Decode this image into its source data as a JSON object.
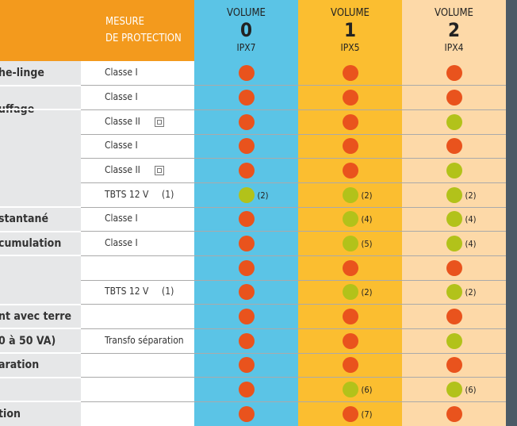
{
  "header": {
    "protection_label_1": "MESURE",
    "protection_label_2": "DE PROTECTION",
    "volumes": [
      {
        "label": "VOLUME",
        "number": "0",
        "rating": "IPX7",
        "color": "#5bc4e6"
      },
      {
        "label": "VOLUME",
        "number": "1",
        "rating": "IPX5",
        "color": "#fbbe30"
      },
      {
        "label": "VOLUME",
        "number": "2",
        "rating": "IPX4",
        "color": "#fdd9a8"
      }
    ]
  },
  "dot_colors": {
    "orange": "#e9531d",
    "green": "#b2c21a"
  },
  "rows": [
    {
      "category": "he-linge",
      "protection": "Classe I",
      "volumes": [
        {
          "dot": "orange"
        },
        {
          "dot": "orange"
        },
        {
          "dot": "orange"
        }
      ]
    },
    {
      "category": "uffage",
      "protection": "Classe I",
      "volumes": [
        {
          "dot": "orange"
        },
        {
          "dot": "orange"
        },
        {
          "dot": "orange"
        }
      ]
    },
    {
      "protection": "Classe II",
      "icon": true,
      "volumes": [
        {
          "dot": "orange"
        },
        {
          "dot": "orange"
        },
        {
          "dot": "green"
        }
      ]
    },
    {
      "protection": "Classe I",
      "volumes": [
        {
          "dot": "orange"
        },
        {
          "dot": "orange"
        },
        {
          "dot": "orange"
        }
      ]
    },
    {
      "protection": "Classe II",
      "icon": true,
      "volumes": [
        {
          "dot": "orange"
        },
        {
          "dot": "orange"
        },
        {
          "dot": "green"
        }
      ]
    },
    {
      "protection": "TBTS 12 V",
      "note": "(1)",
      "volumes": [
        {
          "dot": "green",
          "note": "(2)"
        },
        {
          "dot": "green",
          "note": "(2)"
        },
        {
          "dot": "green",
          "note": "(2)"
        }
      ]
    },
    {
      "category": "stantané",
      "protection": "Classe I",
      "volumes": [
        {
          "dot": "orange"
        },
        {
          "dot": "green",
          "note": "(4)"
        },
        {
          "dot": "green",
          "note": "(4)"
        }
      ]
    },
    {
      "category": "cumulation",
      "protection": "Classe I",
      "volumes": [
        {
          "dot": "orange"
        },
        {
          "dot": "green",
          "note": "(5)"
        },
        {
          "dot": "green",
          "note": "(4)"
        }
      ]
    },
    {
      "volumes": [
        {
          "dot": "orange"
        },
        {
          "dot": "orange"
        },
        {
          "dot": "orange"
        }
      ]
    },
    {
      "protection": "TBTS 12 V",
      "note": "(1)",
      "volumes": [
        {
          "dot": "orange"
        },
        {
          "dot": "green",
          "note": "(2)"
        },
        {
          "dot": "green",
          "note": "(2)"
        }
      ]
    },
    {
      "category": "nt avec terre",
      "volumes": [
        {
          "dot": "orange"
        },
        {
          "dot": "orange"
        },
        {
          "dot": "orange"
        }
      ]
    },
    {
      "category": "0 à 50 VA)",
      "protection": "Transfo séparation",
      "volumes": [
        {
          "dot": "orange"
        },
        {
          "dot": "orange"
        },
        {
          "dot": "green"
        }
      ]
    },
    {
      "category": "aration",
      "volumes": [
        {
          "dot": "orange"
        },
        {
          "dot": "orange"
        },
        {
          "dot": "orange"
        }
      ]
    },
    {
      "volumes": [
        {
          "dot": "orange"
        },
        {
          "dot": "green",
          "note": "(6)"
        },
        {
          "dot": "green",
          "note": "(6)"
        }
      ]
    },
    {
      "category": "tion",
      "volumes": [
        {
          "dot": "orange"
        },
        {
          "dot": "orange",
          "note": "(7)"
        },
        {
          "dot": "orange"
        }
      ]
    }
  ]
}
